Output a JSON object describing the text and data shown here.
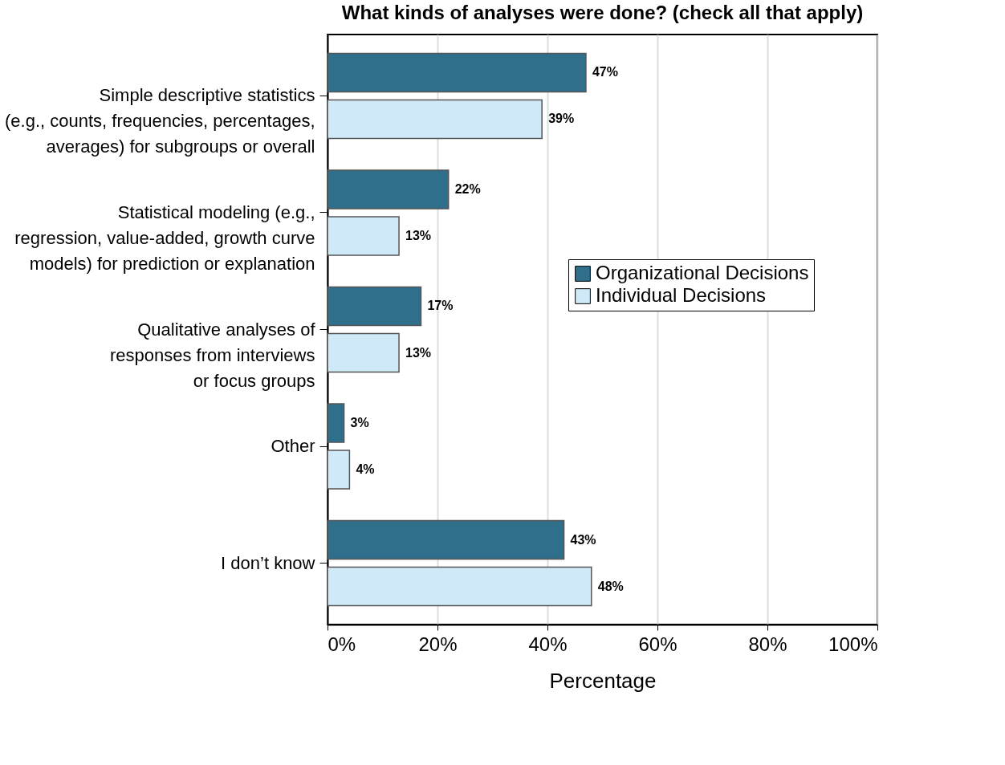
{
  "chart_data": {
    "type": "bar",
    "orientation": "horizontal",
    "title": "What kinds of analyses were done? (check all that apply)",
    "xlabel": "Percentage",
    "categories": [
      "Simple descriptive statistics\n(e.g., counts, frequencies, percentages,\naverages) for subgroups or overall",
      "Statistical modeling (e.g.,\nregression, value-added, growth curve\nmodels) for prediction or explanation",
      "Qualitative analyses of\nresponses from interviews\nor focus groups",
      "Other",
      "I don’t know"
    ],
    "series": [
      {
        "name": "Organizational Decisions",
        "color": "#2f6f8c",
        "values": [
          47,
          22,
          17,
          3,
          43
        ],
        "value_labels": [
          "47%",
          "22%",
          "17%",
          "3%",
          "43%"
        ]
      },
      {
        "name": "Individual Decisions",
        "color": "#cfe9f8",
        "values": [
          39,
          13,
          13,
          4,
          48
        ],
        "value_labels": [
          "39%",
          "13%",
          "13%",
          "4%",
          "48%"
        ]
      }
    ],
    "xlim": [
      0,
      100
    ],
    "xticks": [
      {
        "value": 0,
        "label": "0%"
      },
      {
        "value": 20,
        "label": "20%"
      },
      {
        "value": 40,
        "label": "40%"
      },
      {
        "value": 60,
        "label": "60%"
      },
      {
        "value": 80,
        "label": "80%"
      },
      {
        "value": 100,
        "label": "100%"
      }
    ],
    "grid": "x",
    "legend": "right"
  }
}
